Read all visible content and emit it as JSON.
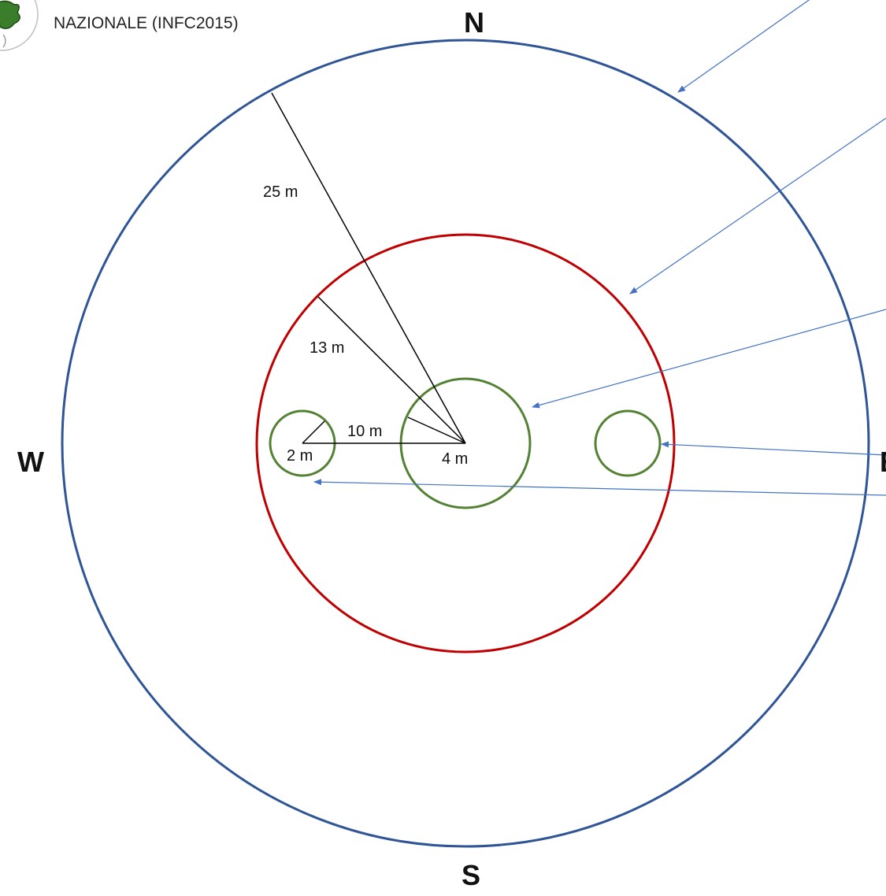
{
  "header": {
    "title": "NAZIONALE (INFC2015)",
    "logo_icon": "green-seal-logo"
  },
  "compass": {
    "north": "N",
    "west": "W",
    "south": "S",
    "east_partial": "E"
  },
  "labels": {
    "radius_large": "25 m",
    "radius_medium": "13 m",
    "offset": "10 m",
    "radius_small": "2 m",
    "radius_center": "4 m"
  },
  "colors": {
    "outer_circle": "#2f5597",
    "middle_circle": "#c00000",
    "small_circles": "#548235",
    "pointer_arrows": "#4472c4",
    "radius_lines": "#000000"
  }
}
